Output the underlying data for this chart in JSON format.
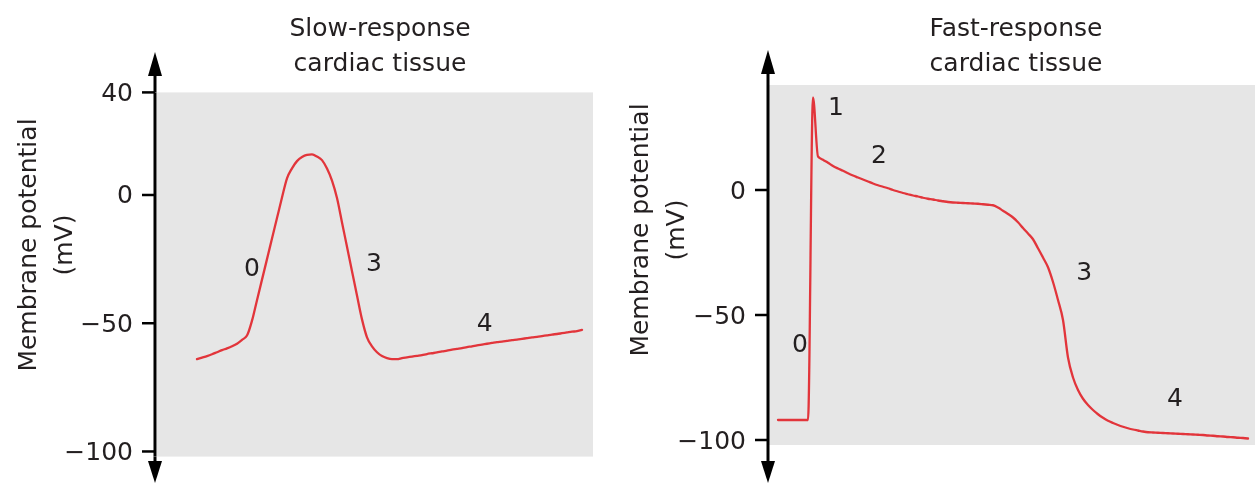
{
  "chart_data": [
    {
      "type": "line",
      "title": "Slow-response cardiac tissue",
      "ylabel": "Membrane potential (mV)",
      "tick_labels": "y",
      "ylim": [
        -102,
        40
      ],
      "yticks": [
        -100,
        -50,
        0,
        40
      ],
      "categories": [
        null,
        null,
        null,
        null,
        null,
        null,
        null,
        null,
        null,
        null,
        null,
        null,
        null,
        null,
        null,
        null,
        null,
        null,
        null,
        null,
        null,
        null,
        null,
        null,
        null,
        null,
        null,
        null,
        null,
        null,
        null,
        null,
        null,
        null,
        null,
        null,
        null,
        null,
        null,
        null,
        null,
        null,
        null,
        null,
        null,
        null,
        null,
        null,
        null,
        null,
        null,
        null,
        null,
        null,
        null,
        null,
        null,
        null,
        null,
        null,
        null,
        null,
        null,
        null,
        null,
        null,
        null,
        null,
        null,
        null,
        null,
        null,
        null,
        null,
        null,
        null,
        null,
        null,
        null,
        null,
        null,
        null,
        null,
        null,
        null,
        null,
        null,
        null,
        null
      ],
      "series": [
        {
          "color": "#e2353b",
          "values": [
            null,
            null,
            null,
            null,
            null,
            null,
            null,
            null,
            -64,
            -63.4,
            -62.8,
            -62.1,
            -61.3,
            -60.5,
            -59.8,
            -59,
            -58,
            -56.5,
            -54.8,
            -49,
            -41,
            -33,
            -25,
            -17,
            -9,
            -1,
            6.5,
            10.4,
            13.2,
            14.8,
            15.6,
            15.8,
            15,
            13.6,
            10.3,
            5.6,
            -1.2,
            -10.7,
            -20.2,
            -29.7,
            -39.2,
            -48.5,
            -55.5,
            -59,
            -61.3,
            -62.8,
            -63.6,
            -64,
            -64,
            -63.6,
            -63.3,
            -63,
            -62.7,
            -62.4,
            -62,
            -61.7,
            -61.4,
            -61,
            -60.7,
            -60.3,
            -60,
            -59.7,
            -59.3,
            -59,
            -58.6,
            -58.3,
            -58,
            -57.7,
            -57.4,
            -57.2,
            -56.9,
            -56.6,
            -56.4,
            -56.1,
            -55.8,
            -55.5,
            -55.3,
            -55,
            -54.7,
            -54.4,
            -54.2,
            -53.9,
            -53.6,
            -53.3,
            -53.1,
            -52.6,
            null,
            null,
            null
          ]
        }
      ],
      "annotations": [
        "0",
        "3",
        "4"
      ]
    },
    {
      "type": "line",
      "title": "Fast-response cardiac tissue",
      "ylabel": "Membrane potential (mV)",
      "tick_labels": "y",
      "ylim": [
        -102,
        42
      ],
      "yticks": [
        -100,
        -50,
        0
      ],
      "categories": [
        null,
        null,
        null,
        null,
        null,
        null,
        null,
        null,
        null,
        null,
        null,
        null,
        null,
        null,
        null,
        null,
        null,
        null,
        null,
        null,
        null,
        null,
        null,
        null,
        null,
        null,
        null,
        null,
        null,
        null,
        null,
        null,
        null,
        null,
        null,
        null,
        null,
        null,
        null,
        null,
        null,
        null,
        null,
        null,
        null,
        null,
        null,
        null,
        null,
        null,
        null,
        null,
        null,
        null,
        null,
        null,
        null,
        null,
        null,
        null,
        null,
        null,
        null,
        null,
        null,
        null,
        null,
        null,
        null,
        null,
        null,
        null,
        null,
        null,
        null,
        null,
        null,
        null,
        null,
        null,
        null,
        null,
        null,
        null,
        null,
        null,
        null,
        null,
        null,
        null,
        null,
        null,
        null,
        null,
        null,
        null,
        null,
        null
      ],
      "series": [
        {
          "color": "#e2353b",
          "values": [
            null,
            null,
            -92,
            -92,
            -92,
            -92,
            -92,
            -92,
            -92,
            37,
            13.4,
            12.1,
            10.9,
            9.6,
            8.6,
            7.7,
            6.7,
            5.8,
            5,
            4.2,
            3.4,
            2.6,
            1.9,
            1.3,
            0.7,
            0,
            -0.6,
            -1.2,
            -1.7,
            -2.2,
            -2.6,
            -3.1,
            -3.5,
            -3.8,
            -4.2,
            -4.5,
            -4.8,
            -5,
            -5.1,
            -5.2,
            -5.3,
            -5.4,
            -5.5,
            -5.7,
            -5.9,
            -6.1,
            -7,
            -8.3,
            -9.6,
            -11,
            -12.9,
            -15.2,
            -17.4,
            -19.7,
            -23.3,
            -27,
            -30.9,
            -36.8,
            -44,
            -52,
            -67,
            -75,
            -80,
            -83.5,
            -86,
            -88,
            -89.7,
            -91.1,
            -92.3,
            -93.2,
            -94,
            -94.7,
            -95.3,
            -95.8,
            -96.2,
            -96.6,
            -96.9,
            -97,
            -97.1,
            -97.2,
            -97.3,
            -97.4,
            -97.5,
            -97.6,
            -97.7,
            -97.8,
            -97.9,
            -98,
            -98.2,
            -98.3,
            -98.5,
            -98.6,
            -98.8,
            -98.9,
            -99.1,
            -99.2,
            -99.4,
            null
          ]
        }
      ],
      "annotations": [
        "0",
        "1",
        "2",
        "3",
        "4"
      ]
    }
  ]
}
